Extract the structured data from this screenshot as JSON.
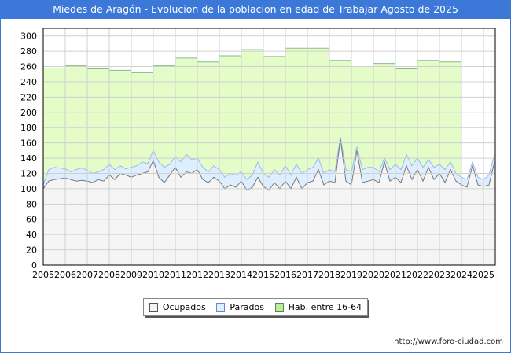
{
  "title": "Miedes de Aragón - Evolucion de la poblacion en edad de Trabajar Agosto de 2025",
  "url": "http://www.foro-ciudad.com",
  "chart_data": {
    "type": "area",
    "title": "Miedes de Aragón - Evolucion de la poblacion en edad de Trabajar Agosto de 2025",
    "xlabel": "",
    "ylabel": "",
    "ylim": [
      0,
      310
    ],
    "yticks": [
      0,
      20,
      40,
      60,
      80,
      100,
      120,
      140,
      160,
      180,
      200,
      220,
      240,
      260,
      280,
      300
    ],
    "xticks": [
      "2005",
      "2006",
      "2007",
      "2008",
      "2009",
      "2010",
      "2011",
      "2012",
      "2013",
      "2014",
      "2015",
      "2016",
      "2017",
      "2018",
      "2019",
      "2020",
      "2021",
      "2022",
      "2023",
      "2024",
      "2025"
    ],
    "grid": true,
    "legend_position": "bottom",
    "legend": [
      "Ocupados",
      "Parados",
      "Hab. entre 16-64"
    ],
    "colors": {
      "ocupados": "#f5f5f5",
      "ocupados_line": "#777777",
      "parados": "#ddeeff",
      "parados_line": "#99bbee",
      "hab": "#e4fdc8",
      "hab_line": "#88bb88"
    },
    "hab_yearly": {
      "years": [
        2005,
        2006,
        2007,
        2008,
        2009,
        2010,
        2011,
        2012,
        2013,
        2014,
        2015,
        2016,
        2017,
        2018,
        2019,
        2020,
        2021,
        2022,
        2023
      ],
      "values": [
        258,
        261,
        257,
        255,
        252,
        261,
        271,
        266,
        274,
        282,
        273,
        284,
        284,
        268,
        260,
        264,
        257,
        268,
        266
      ]
    },
    "quarterly_start": 2005,
    "ocupados": [
      100,
      110,
      112,
      113,
      114,
      112,
      110,
      111,
      110,
      108,
      112,
      110,
      118,
      112,
      120,
      118,
      115,
      118,
      120,
      122,
      137,
      115,
      108,
      118,
      128,
      115,
      122,
      120,
      125,
      112,
      108,
      115,
      110,
      100,
      105,
      102,
      110,
      98,
      102,
      115,
      103,
      98,
      108,
      100,
      110,
      100,
      115,
      100,
      108,
      110,
      125,
      105,
      110,
      108,
      165,
      110,
      105,
      150,
      108,
      110,
      112,
      108,
      135,
      110,
      115,
      108,
      130,
      112,
      125,
      110,
      128,
      112,
      120,
      108,
      125,
      110,
      105,
      102,
      130,
      105,
      103,
      105,
      135
    ],
    "parados": [
      105,
      125,
      128,
      127,
      126,
      122,
      125,
      127,
      124,
      120,
      122,
      125,
      132,
      125,
      130,
      126,
      128,
      130,
      135,
      133,
      150,
      135,
      128,
      132,
      142,
      135,
      145,
      138,
      140,
      128,
      122,
      130,
      125,
      115,
      120,
      118,
      122,
      112,
      118,
      135,
      120,
      115,
      125,
      118,
      130,
      118,
      132,
      120,
      125,
      128,
      140,
      120,
      125,
      122,
      168,
      125,
      122,
      155,
      125,
      128,
      128,
      122,
      140,
      125,
      132,
      125,
      145,
      130,
      140,
      128,
      138,
      128,
      132,
      125,
      135,
      120,
      115,
      112,
      135,
      115,
      112,
      118,
      145
    ]
  }
}
